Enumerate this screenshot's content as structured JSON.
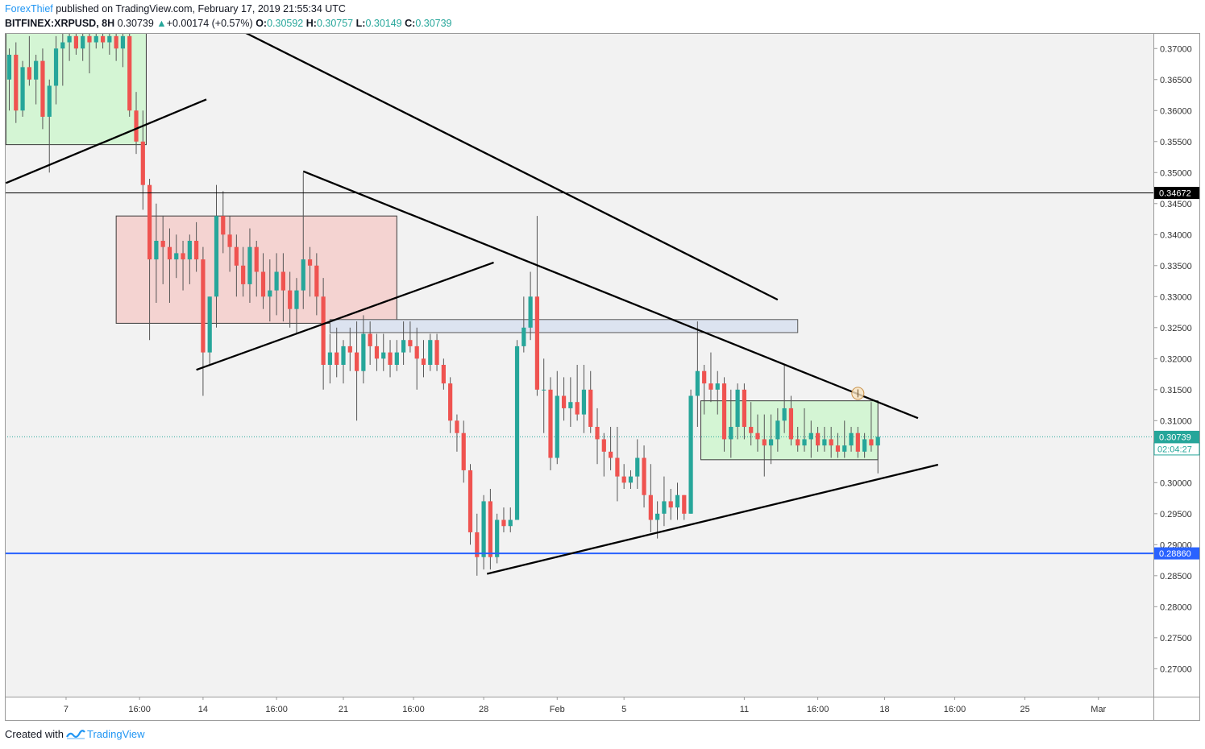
{
  "header": {
    "author": "ForexThief",
    "published": " published on TradingView.com, February 17, 2019 21:55:34 UTC"
  },
  "ticker": {
    "symbol": "BITFINEX:XRPUSD, 8H",
    "last": "0.30739",
    "arrow": "▲",
    "change": "+0.00174 (+0.57%)",
    "open_label": "O:",
    "open": "0.30592",
    "high_label": "H:",
    "high": "0.30757",
    "low_label": "L:",
    "low": "0.30149",
    "close_label": "C:",
    "close": "0.30739"
  },
  "footer": {
    "created_with": "Created with",
    "brand": "TradingView"
  },
  "colors": {
    "up": "#26a69a",
    "down": "#ef5350",
    "background": "#f2f2f2",
    "blue_line": "#2962ff",
    "green_zone": "#d4f5d4",
    "red_zone": "#f4d3d1",
    "blue_zone": "#dce3f0"
  },
  "chart_data": {
    "type": "candlestick",
    "symbol": "BITFINEX:XRPUSD",
    "timeframe": "8H",
    "y_range": [
      0.2655,
      0.3725
    ],
    "y_ticks": [
      "0.37000",
      "0.36500",
      "0.36000",
      "0.35500",
      "0.35000",
      "0.34500",
      "0.34000",
      "0.33500",
      "0.33000",
      "0.32500",
      "0.32000",
      "0.31500",
      "0.31000",
      "0.30500",
      "0.30000",
      "0.29500",
      "0.29000",
      "0.28500",
      "0.28000",
      "0.27500",
      "0.27000"
    ],
    "y_tick_values": [
      0.37,
      0.365,
      0.36,
      0.355,
      0.35,
      0.345,
      0.34,
      0.335,
      0.33,
      0.325,
      0.32,
      0.315,
      0.31,
      0.305,
      0.3,
      0.295,
      0.29,
      0.285,
      0.28,
      0.275,
      0.27
    ],
    "x_ticks": [
      {
        "label": "7",
        "bar": 8.5
      },
      {
        "label": "16:00",
        "bar": 19.5
      },
      {
        "label": "14",
        "bar": 29
      },
      {
        "label": "16:00",
        "bar": 40
      },
      {
        "label": "21",
        "bar": 50
      },
      {
        "label": "16:00",
        "bar": 60.5
      },
      {
        "label": "28",
        "bar": 71
      },
      {
        "label": "Feb",
        "bar": 82
      },
      {
        "label": "5",
        "bar": 92
      },
      {
        "label": "11",
        "bar": 110
      },
      {
        "label": "16:00",
        "bar": 121
      },
      {
        "label": "18",
        "bar": 131
      },
      {
        "label": "16:00",
        "bar": 141.5
      },
      {
        "label": "25",
        "bar": 152
      },
      {
        "label": "Mar",
        "bar": 163
      }
    ],
    "candles": [
      [
        0.365,
        0.37,
        0.36,
        0.369
      ],
      [
        0.369,
        0.371,
        0.358,
        0.36
      ],
      [
        0.36,
        0.368,
        0.359,
        0.367
      ],
      [
        0.367,
        0.372,
        0.364,
        0.365
      ],
      [
        0.365,
        0.369,
        0.361,
        0.368
      ],
      [
        0.368,
        0.37,
        0.357,
        0.359
      ],
      [
        0.359,
        0.365,
        0.35,
        0.364
      ],
      [
        0.364,
        0.372,
        0.361,
        0.37
      ],
      [
        0.37,
        0.373,
        0.364,
        0.371
      ],
      [
        0.371,
        0.373,
        0.368,
        0.372
      ],
      [
        0.372,
        0.373,
        0.369,
        0.37
      ],
      [
        0.37,
        0.373,
        0.368,
        0.372
      ],
      [
        0.372,
        0.373,
        0.366,
        0.371
      ],
      [
        0.371,
        0.373,
        0.37,
        0.372
      ],
      [
        0.372,
        0.373,
        0.37,
        0.371
      ],
      [
        0.371,
        0.373,
        0.369,
        0.372
      ],
      [
        0.372,
        0.373,
        0.368,
        0.37
      ],
      [
        0.37,
        0.373,
        0.367,
        0.372
      ],
      [
        0.372,
        0.373,
        0.359,
        0.36
      ],
      [
        0.36,
        0.363,
        0.353,
        0.355
      ],
      [
        0.355,
        0.36,
        0.344,
        0.348
      ],
      [
        0.348,
        0.349,
        0.323,
        0.336
      ],
      [
        0.336,
        0.345,
        0.329,
        0.339
      ],
      [
        0.339,
        0.343,
        0.332,
        0.338
      ],
      [
        0.338,
        0.341,
        0.329,
        0.336
      ],
      [
        0.336,
        0.34,
        0.333,
        0.337
      ],
      [
        0.337,
        0.339,
        0.331,
        0.336
      ],
      [
        0.336,
        0.34,
        0.332,
        0.339
      ],
      [
        0.339,
        0.342,
        0.334,
        0.336
      ],
      [
        0.336,
        0.338,
        0.314,
        0.321
      ],
      [
        0.321,
        0.33,
        0.319,
        0.33
      ],
      [
        0.33,
        0.348,
        0.325,
        0.343
      ],
      [
        0.343,
        0.347,
        0.337,
        0.34
      ],
      [
        0.34,
        0.343,
        0.334,
        0.338
      ],
      [
        0.338,
        0.34,
        0.33,
        0.335
      ],
      [
        0.335,
        0.338,
        0.33,
        0.332
      ],
      [
        0.332,
        0.341,
        0.329,
        0.338
      ],
      [
        0.338,
        0.339,
        0.33,
        0.334
      ],
      [
        0.334,
        0.337,
        0.328,
        0.33
      ],
      [
        0.33,
        0.336,
        0.326,
        0.331
      ],
      [
        0.331,
        0.337,
        0.327,
        0.334
      ],
      [
        0.334,
        0.337,
        0.326,
        0.331
      ],
      [
        0.331,
        0.334,
        0.325,
        0.328
      ],
      [
        0.328,
        0.333,
        0.324,
        0.331
      ],
      [
        0.331,
        0.35,
        0.328,
        0.336
      ],
      [
        0.336,
        0.338,
        0.33,
        0.335
      ],
      [
        0.335,
        0.337,
        0.327,
        0.33
      ],
      [
        0.33,
        0.333,
        0.315,
        0.319
      ],
      [
        0.319,
        0.324,
        0.316,
        0.321
      ],
      [
        0.321,
        0.325,
        0.317,
        0.319
      ],
      [
        0.319,
        0.323,
        0.316,
        0.322
      ],
      [
        0.322,
        0.325,
        0.318,
        0.321
      ],
      [
        0.321,
        0.326,
        0.31,
        0.318
      ],
      [
        0.318,
        0.327,
        0.316,
        0.324
      ],
      [
        0.324,
        0.326,
        0.319,
        0.322
      ],
      [
        0.322,
        0.324,
        0.318,
        0.32
      ],
      [
        0.32,
        0.324,
        0.318,
        0.321
      ],
      [
        0.321,
        0.323,
        0.317,
        0.319
      ],
      [
        0.319,
        0.323,
        0.318,
        0.321
      ],
      [
        0.321,
        0.326,
        0.319,
        0.323
      ],
      [
        0.323,
        0.326,
        0.321,
        0.322
      ],
      [
        0.322,
        0.325,
        0.315,
        0.32
      ],
      [
        0.32,
        0.323,
        0.317,
        0.319
      ],
      [
        0.319,
        0.324,
        0.318,
        0.323
      ],
      [
        0.323,
        0.324,
        0.318,
        0.319
      ],
      [
        0.319,
        0.32,
        0.315,
        0.316
      ],
      [
        0.316,
        0.317,
        0.308,
        0.31
      ],
      [
        0.31,
        0.311,
        0.305,
        0.308
      ],
      [
        0.308,
        0.31,
        0.3,
        0.302
      ],
      [
        0.302,
        0.303,
        0.29,
        0.292
      ],
      [
        0.292,
        0.295,
        0.285,
        0.288
      ],
      [
        0.288,
        0.298,
        0.286,
        0.297
      ],
      [
        0.297,
        0.299,
        0.286,
        0.288
      ],
      [
        0.288,
        0.295,
        0.287,
        0.294
      ],
      [
        0.294,
        0.296,
        0.292,
        0.293
      ],
      [
        0.293,
        0.296,
        0.292,
        0.294
      ],
      [
        0.294,
        0.323,
        0.294,
        0.322
      ],
      [
        0.322,
        0.33,
        0.321,
        0.325
      ],
      [
        0.325,
        0.334,
        0.323,
        0.33
      ],
      [
        0.33,
        0.343,
        0.314,
        0.315
      ],
      [
        0.315,
        0.32,
        0.308,
        0.315
      ],
      [
        0.315,
        0.317,
        0.302,
        0.304
      ],
      [
        0.304,
        0.318,
        0.303,
        0.314
      ],
      [
        0.314,
        0.317,
        0.31,
        0.312
      ],
      [
        0.312,
        0.317,
        0.309,
        0.313
      ],
      [
        0.313,
        0.319,
        0.31,
        0.311
      ],
      [
        0.311,
        0.319,
        0.308,
        0.315
      ],
      [
        0.315,
        0.318,
        0.308,
        0.309
      ],
      [
        0.309,
        0.312,
        0.303,
        0.307
      ],
      [
        0.307,
        0.308,
        0.301,
        0.305
      ],
      [
        0.305,
        0.309,
        0.302,
        0.304
      ],
      [
        0.304,
        0.309,
        0.297,
        0.301
      ],
      [
        0.301,
        0.303,
        0.299,
        0.3
      ],
      [
        0.3,
        0.302,
        0.299,
        0.301
      ],
      [
        0.301,
        0.307,
        0.299,
        0.304
      ],
      [
        0.304,
        0.306,
        0.296,
        0.298
      ],
      [
        0.298,
        0.303,
        0.292,
        0.294
      ],
      [
        0.294,
        0.297,
        0.291,
        0.295
      ],
      [
        0.295,
        0.301,
        0.293,
        0.297
      ],
      [
        0.297,
        0.299,
        0.294,
        0.296
      ],
      [
        0.296,
        0.3,
        0.294,
        0.298
      ],
      [
        0.298,
        0.298,
        0.294,
        0.295
      ],
      [
        0.295,
        0.315,
        0.295,
        0.314
      ],
      [
        0.314,
        0.326,
        0.309,
        0.318
      ],
      [
        0.318,
        0.319,
        0.311,
        0.316
      ],
      [
        0.316,
        0.321,
        0.313,
        0.315
      ],
      [
        0.315,
        0.318,
        0.311,
        0.316
      ],
      [
        0.316,
        0.317,
        0.305,
        0.307
      ],
      [
        0.307,
        0.315,
        0.304,
        0.309
      ],
      [
        0.309,
        0.316,
        0.307,
        0.315
      ],
      [
        0.315,
        0.316,
        0.307,
        0.309
      ],
      [
        0.309,
        0.313,
        0.306,
        0.308
      ],
      [
        0.308,
        0.311,
        0.305,
        0.307
      ],
      [
        0.307,
        0.311,
        0.301,
        0.306
      ],
      [
        0.306,
        0.311,
        0.303,
        0.307
      ],
      [
        0.307,
        0.312,
        0.305,
        0.31
      ],
      [
        0.31,
        0.319,
        0.308,
        0.312
      ],
      [
        0.312,
        0.314,
        0.306,
        0.307
      ],
      [
        0.307,
        0.309,
        0.305,
        0.306
      ],
      [
        0.306,
        0.312,
        0.305,
        0.307
      ],
      [
        0.307,
        0.31,
        0.304,
        0.308
      ],
      [
        0.308,
        0.309,
        0.305,
        0.306
      ],
      [
        0.306,
        0.309,
        0.305,
        0.307
      ],
      [
        0.307,
        0.309,
        0.304,
        0.306
      ],
      [
        0.306,
        0.308,
        0.304,
        0.305
      ],
      [
        0.305,
        0.31,
        0.304,
        0.306
      ],
      [
        0.306,
        0.309,
        0.305,
        0.308
      ],
      [
        0.308,
        0.309,
        0.304,
        0.305
      ],
      [
        0.305,
        0.308,
        0.304,
        0.307
      ],
      [
        0.307,
        0.313,
        0.305,
        0.306
      ],
      [
        0.306,
        0.3076,
        0.3015,
        0.3074
      ]
    ],
    "horizontal_lines": [
      {
        "value": 0.34672,
        "label": "0.34672",
        "color": "#000000"
      },
      {
        "value": 0.2886,
        "label": "0.28860",
        "color": "#2962ff"
      },
      {
        "value": 0.30739,
        "label": "0.30739",
        "color": "#26a69a",
        "sub_label": "02:04:27"
      }
    ],
    "zones": [
      {
        "type": "green",
        "bar_from": -0.5,
        "bar_to": 20.5,
        "value_top": 0.373,
        "value_bottom": 0.3545
      },
      {
        "type": "red",
        "bar_from": 16,
        "bar_to": 58,
        "value_top": 0.343,
        "value_bottom": 0.3257
      },
      {
        "type": "blue",
        "bar_from": 48,
        "bar_to": 118,
        "value_top": 0.3263,
        "value_bottom": 0.3242
      },
      {
        "type": "green",
        "bar_from": 103.5,
        "bar_to": 130,
        "value_top": 0.3132,
        "value_bottom": 0.3037
      }
    ],
    "trendlines": [
      {
        "bar1": -0.5,
        "v1": 0.3483,
        "bar2": 29.5,
        "v2": 0.3618
      },
      {
        "bar1": 34.5,
        "v1": 0.373,
        "bar2": 115,
        "v2": 0.3295
      },
      {
        "bar1": 44,
        "v1": 0.3502,
        "bar2": 136,
        "v2": 0.3104
      },
      {
        "bar1": 28,
        "v1": 0.3182,
        "bar2": 72.5,
        "v2": 0.3355
      },
      {
        "bar1": 71.5,
        "v1": 0.2853,
        "bar2": 139,
        "v2": 0.3029
      }
    ],
    "marker": {
      "bar": 127,
      "value": 0.3144
    }
  }
}
